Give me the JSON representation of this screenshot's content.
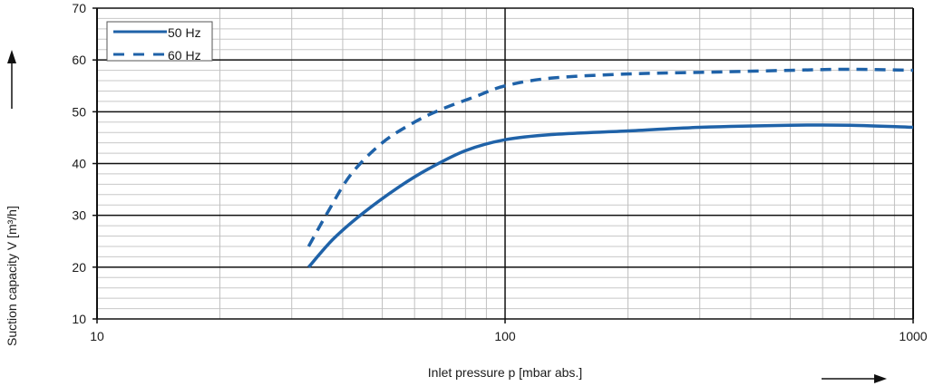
{
  "chart_data": {
    "type": "line",
    "title": "",
    "xlabel": "Inlet pressure p [mbar abs.]",
    "ylabel": "Suction capacity V [m³/h]",
    "xscale": "log",
    "xlim": [
      10,
      1000
    ],
    "ylim": [
      10,
      70
    ],
    "x_ticks": [
      "10",
      "100",
      "1000"
    ],
    "y_ticks": [
      "10",
      "20",
      "30",
      "40",
      "50",
      "60",
      "70"
    ],
    "grid": true,
    "legend_position": "upper-left",
    "series": [
      {
        "name": "50 Hz",
        "style": "solid",
        "color": "#1f62a8",
        "x": [
          33,
          38,
          45,
          55,
          65,
          80,
          100,
          130,
          200,
          300,
          500,
          700,
          1000
        ],
        "y": [
          20,
          25.5,
          30.5,
          35.5,
          39,
          42.5,
          44.6,
          45.6,
          46.3,
          47,
          47.4,
          47.4,
          47
        ]
      },
      {
        "name": "60 Hz",
        "style": "dashed",
        "color": "#1f62a8",
        "x": [
          33,
          37,
          42,
          50,
          60,
          70,
          85,
          100,
          130,
          200,
          300,
          500,
          700,
          1000
        ],
        "y": [
          24,
          31,
          38,
          44,
          48,
          50.5,
          53,
          55,
          56.5,
          57.3,
          57.6,
          58,
          58.2,
          58
        ]
      }
    ]
  },
  "legend": {
    "items": [
      "50 Hz",
      "60 Hz"
    ]
  },
  "arrows": {
    "y_arrow": "up-arrow",
    "x_arrow": "right-arrow"
  }
}
